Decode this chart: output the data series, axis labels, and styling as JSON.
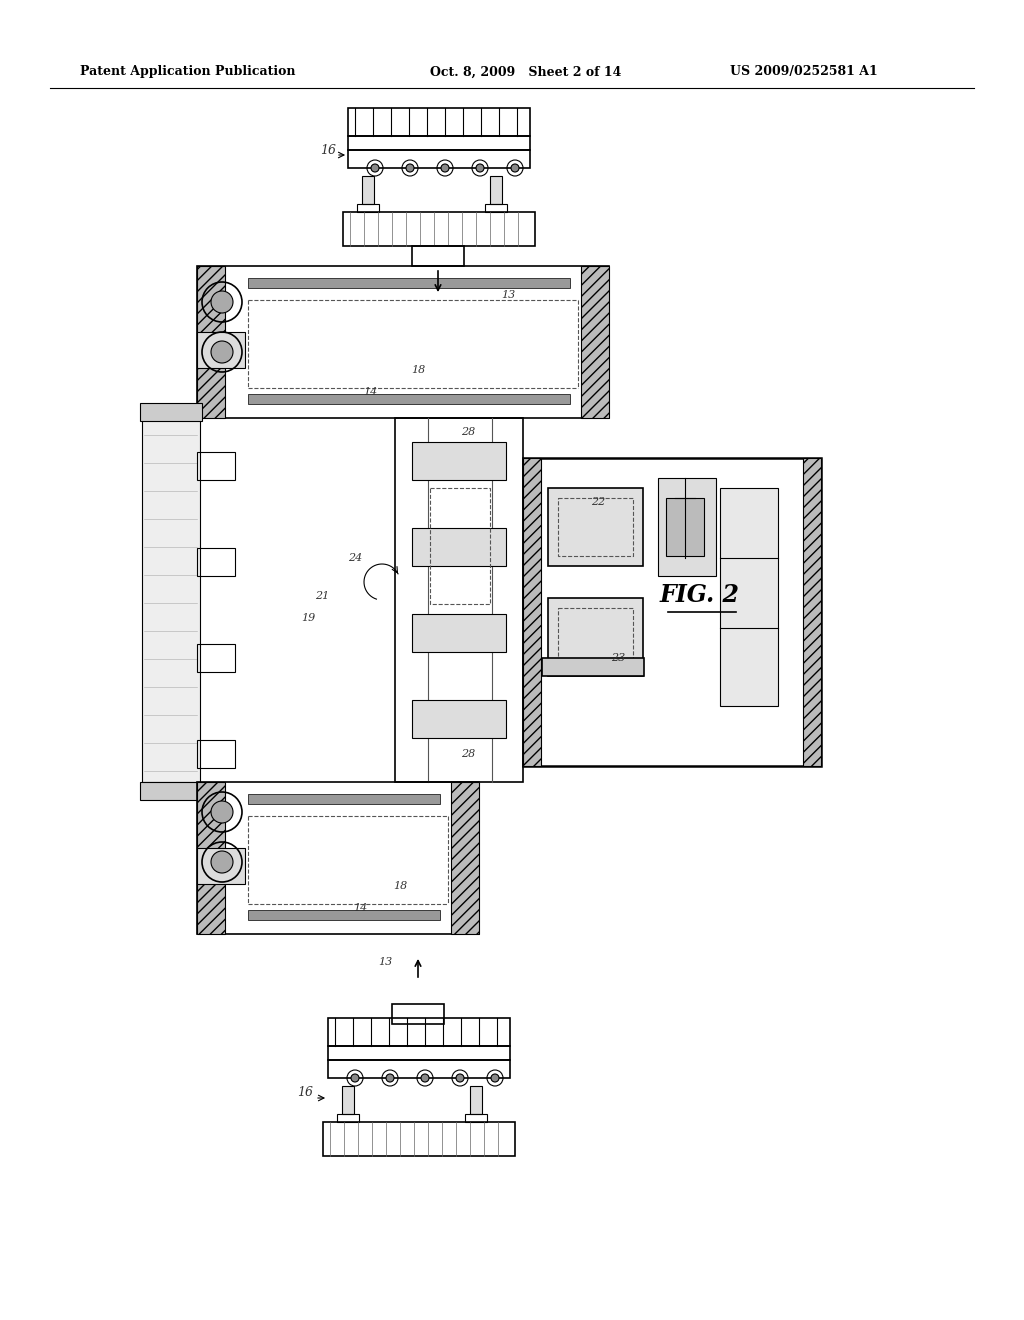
{
  "header_left": "Patent Application Publication",
  "header_mid": "Oct. 8, 2009   Sheet 2 of 14",
  "header_right": "US 2009/0252581 A1",
  "fig_label": "FIG. 2",
  "bg_color": "#ffffff",
  "line_color": "#000000",
  "label_color": "#333333"
}
